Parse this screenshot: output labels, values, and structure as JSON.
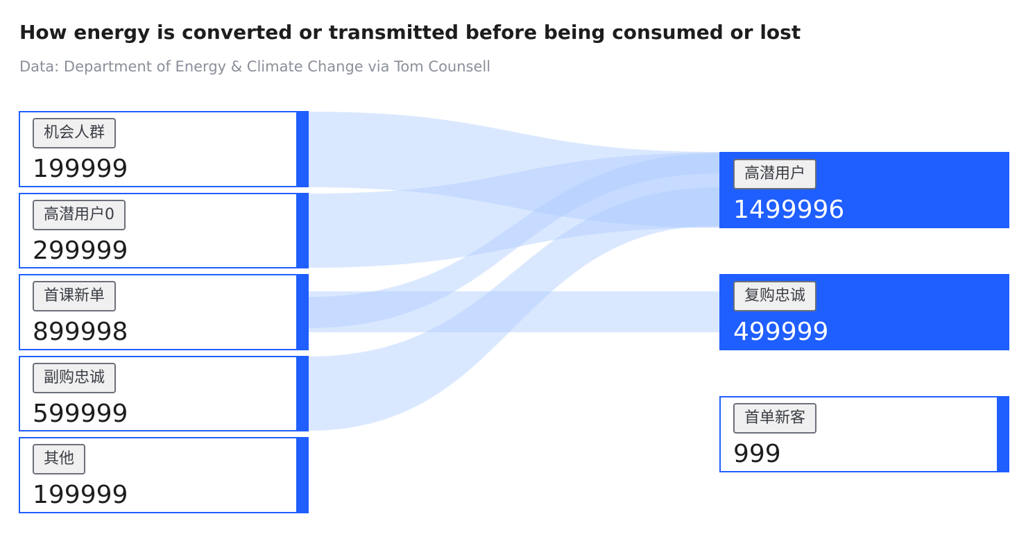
{
  "header": {
    "title": "How energy is converted or transmitted before being consumed or lost",
    "subtitle": "Data: Department of Energy & Climate Change via Tom Counsell"
  },
  "colors": {
    "accent": "#1f5eff",
    "flow": "#aecbff"
  },
  "sources": [
    {
      "id": "s0",
      "name": "机会人群",
      "value": "199999"
    },
    {
      "id": "s1",
      "name": "高潜用户0",
      "value": "299999"
    },
    {
      "id": "s2",
      "name": "首课新单",
      "value": "899998"
    },
    {
      "id": "s3",
      "name": "副购忠诚",
      "value": "599999"
    },
    {
      "id": "s4",
      "name": "其他",
      "value": "199999"
    }
  ],
  "targets": [
    {
      "id": "t0",
      "name": "高潜用户",
      "value": "1499996",
      "highlighted": true
    },
    {
      "id": "t1",
      "name": "复购忠诚",
      "value": "499999",
      "highlighted": true
    },
    {
      "id": "t2",
      "name": "首单新客",
      "value": "999",
      "highlighted": false
    }
  ],
  "links": [
    {
      "source": "机会人群",
      "target": "高潜用户"
    },
    {
      "source": "高潜用户0",
      "target": "高潜用户"
    },
    {
      "source": "首课新单",
      "target": "高潜用户"
    },
    {
      "source": "首课新单",
      "target": "复购忠诚"
    },
    {
      "source": "副购忠诚",
      "target": "高潜用户"
    }
  ]
}
